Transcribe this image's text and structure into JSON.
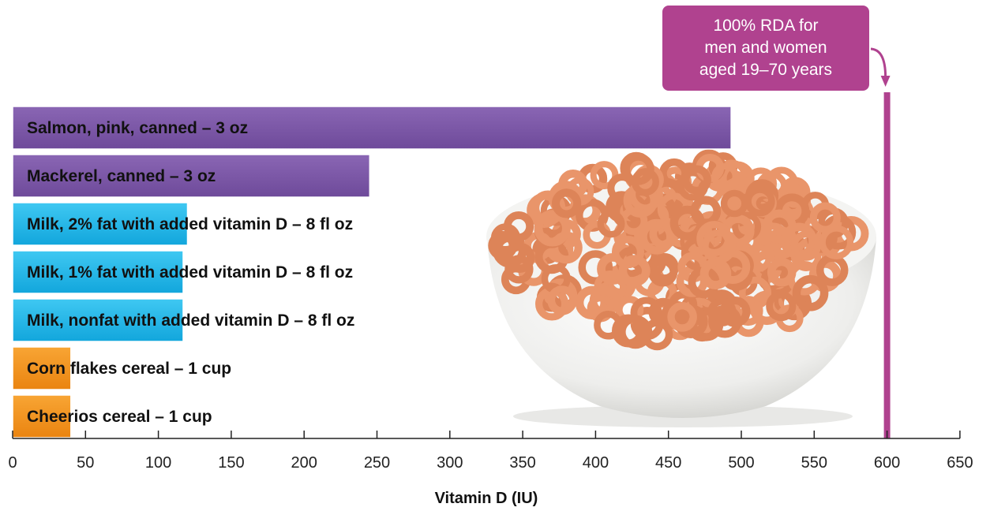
{
  "chart_data": {
    "type": "bar",
    "orientation": "horizontal",
    "categories": [
      "Salmon, pink, canned – 3 oz",
      "Mackerel, canned – 3 oz",
      "Milk, 2% fat with added vitamin D – 8 fl oz",
      "Milk, 1% fat with added vitamin D – 8 fl oz",
      "Milk, nonfat with added vitamin D – 8 fl oz",
      "Corn flakes cereal – 1 cup",
      "Cheerios cereal – 1 cup"
    ],
    "values": [
      493,
      245,
      120,
      117,
      117,
      40,
      40
    ],
    "colors": [
      "#7b56a6",
      "#7b56a6",
      "#1cb7ea",
      "#1cb7ea",
      "#1cb7ea",
      "#f2921d",
      "#f2921d"
    ],
    "title": "",
    "xlabel": "Vitamin D (IU)",
    "ylabel": "",
    "xlim": [
      0,
      650
    ],
    "xticks": [
      0,
      50,
      100,
      150,
      200,
      250,
      300,
      350,
      400,
      450,
      500,
      550,
      600,
      650
    ],
    "grid": false,
    "reference_line": {
      "value": 600,
      "color": "#b0428f",
      "label_lines": [
        "100% RDA for",
        "men and women",
        "aged 19–70 years"
      ]
    },
    "background_image": "cereal-bowl"
  }
}
